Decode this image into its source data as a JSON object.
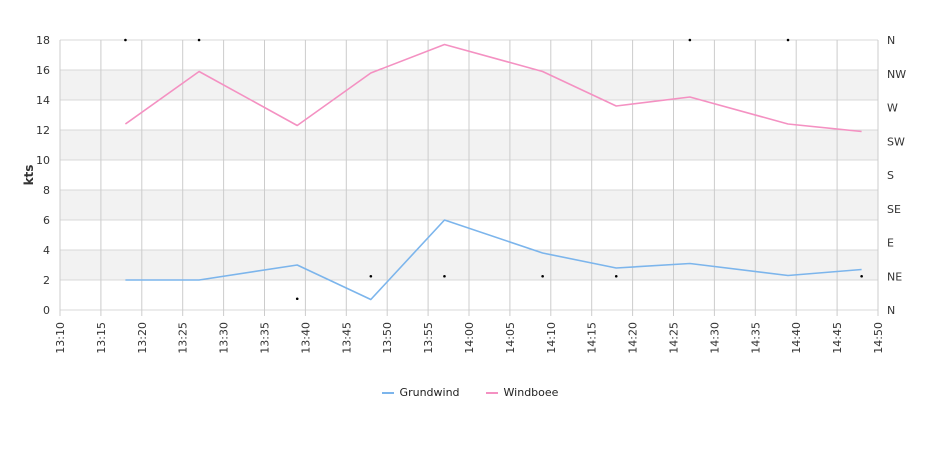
{
  "chart_data": {
    "type": "line",
    "ylabel": "kts",
    "ylim": [
      0,
      18
    ],
    "yticks": [
      "0",
      "2",
      "4",
      "6",
      "8",
      "10",
      "12",
      "14",
      "16",
      "18"
    ],
    "xlim": [
      "13:10",
      "14:50"
    ],
    "xticks": [
      "13:10",
      "13:15",
      "13:20",
      "13:25",
      "13:30",
      "13:35",
      "13:40",
      "13:45",
      "13:50",
      "13:55",
      "14:00",
      "14:05",
      "14:10",
      "14:15",
      "14:20",
      "14:25",
      "14:30",
      "14:35",
      "14:40",
      "14:45",
      "14:50"
    ],
    "y2ticks": [
      "N",
      "NE",
      "E",
      "SE",
      "S",
      "SW",
      "W",
      "NW",
      "N"
    ],
    "y2lim": [
      0,
      360
    ],
    "grid": true,
    "legend_position": "bottom",
    "series": [
      {
        "name": "Grundwind",
        "color": "#7cb5ec",
        "x": [
          "13:18",
          "13:27",
          "13:39",
          "13:48",
          "13:57",
          "14:09",
          "14:18",
          "14:27",
          "14:39",
          "14:48"
        ],
        "values": [
          2.0,
          2.0,
          3.0,
          0.7,
          6.0,
          3.8,
          2.8,
          3.1,
          2.3,
          2.7
        ]
      },
      {
        "name": "Windboee",
        "color": "#f491c2",
        "x": [
          "13:18",
          "13:27",
          "13:39",
          "13:48",
          "13:57",
          "14:09",
          "14:18",
          "14:27",
          "14:39",
          "14:48"
        ],
        "values": [
          12.4,
          15.9,
          12.3,
          15.8,
          17.7,
          15.9,
          13.6,
          14.2,
          12.4,
          11.9
        ]
      }
    ],
    "direction_points": {
      "x": [
        "13:18",
        "13:27",
        "13:39",
        "13:48",
        "13:57",
        "14:09",
        "14:18",
        "14:27",
        "14:39",
        "14:48"
      ],
      "degrees": [
        360,
        360,
        15,
        45,
        45,
        45,
        45,
        360,
        360,
        45
      ]
    }
  }
}
